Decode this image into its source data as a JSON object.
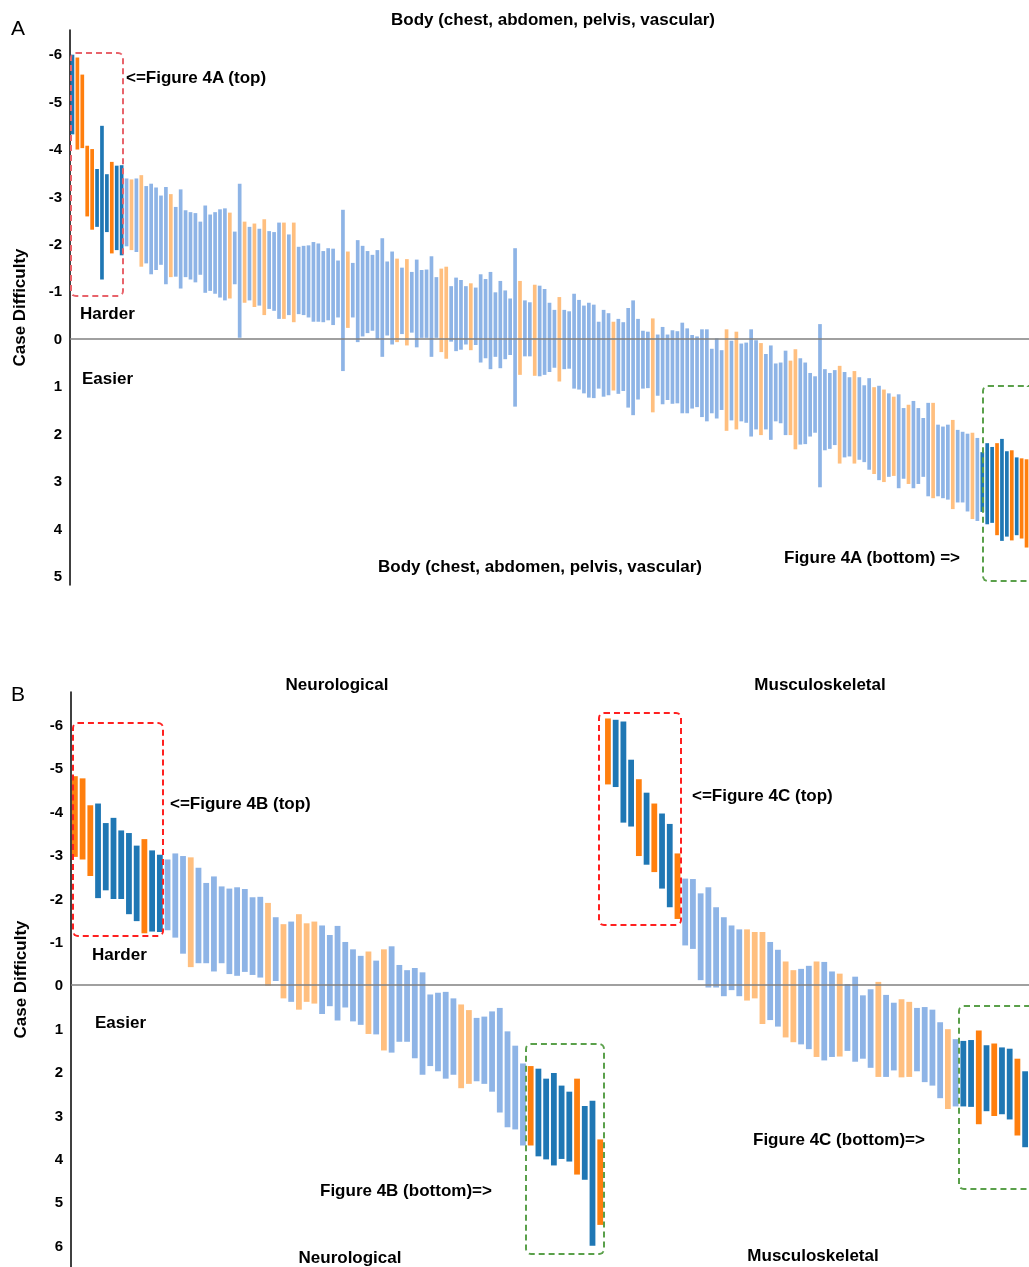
{
  "chart_data": [
    {
      "type": "bar",
      "title": "A",
      "ylabel": "Case Difficulty",
      "annotations": [
        "Body (chest, abdomen, pelvis, vascular)",
        "<=Figure 4A (top)",
        "Harder",
        "Easier",
        "Figure 4A (bottom) =>",
        "Body (chest, abdomen, pelvis, vascular)"
      ],
      "categories": [
        null,
        null,
        null,
        null,
        null,
        null,
        null,
        null,
        null,
        null,
        null,
        null,
        null,
        null,
        null,
        null,
        null,
        null,
        null,
        null,
        null,
        null,
        null,
        null,
        null,
        null,
        null,
        null,
        null,
        null,
        null,
        null,
        null,
        null,
        null,
        null,
        null,
        null,
        null,
        null,
        null,
        null,
        null,
        null,
        null,
        null,
        null,
        null,
        null,
        null,
        null,
        null,
        null,
        null,
        null,
        null,
        null,
        null,
        null,
        null,
        null,
        null,
        null,
        null,
        null,
        null,
        null,
        null,
        null,
        null,
        null,
        null,
        null,
        null,
        null,
        null,
        null,
        null,
        null,
        null,
        null,
        null,
        null,
        null,
        null,
        null,
        null,
        null,
        null,
        null,
        null,
        null,
        null,
        null,
        null,
        null,
        null,
        null,
        null,
        null,
        null,
        null,
        null,
        null,
        null,
        null,
        null,
        null,
        null,
        null,
        null,
        null,
        null,
        null,
        null,
        null,
        null,
        null,
        null,
        null,
        null,
        null,
        null,
        null,
        null,
        null,
        null,
        null,
        null,
        null,
        null,
        null,
        null,
        null,
        null,
        null,
        null,
        null,
        null,
        null,
        null,
        null,
        null,
        null,
        null,
        null,
        null,
        null,
        null,
        null,
        null,
        null,
        null,
        null,
        null,
        null,
        null,
        null,
        null,
        null,
        null,
        null,
        null,
        null,
        null,
        null,
        null,
        null,
        null,
        null,
        null,
        null,
        null,
        null,
        null,
        null,
        null,
        null,
        null,
        null,
        null,
        null,
        null,
        null,
        null,
        null,
        null,
        null,
        null,
        null,
        null,
        null,
        null,
        null,
        null
      ],
      "base": [
        -5.98,
        -5.92,
        -5.56,
        -4.06,
        -3.99,
        -3.57,
        -4.48,
        -3.46,
        -3.72,
        -3.64,
        -3.65,
        -3.37,
        -3.35,
        -3.37,
        -3.44,
        -3.21,
        -3.26,
        -3.18,
        -3.01,
        -3.19,
        -3.04,
        -2.77,
        -3.14,
        -2.7,
        -2.66,
        -2.64,
        -2.46,
        -2.8,
        -2.61,
        -2.66,
        -2.72,
        -2.74,
        -2.65,
        -2.25,
        -3.26,
        -2.46,
        -2.35,
        -2.42,
        -2.31,
        -2.51,
        -2.26,
        -2.24,
        -2.44,
        -2.44,
        -2.19,
        -2.44,
        -1.93,
        -1.95,
        -1.96,
        -2.03,
        -2.0,
        -1.84,
        -1.9,
        -1.89,
        -1.64,
        -2.71,
        -1.83,
        -1.59,
        -2.07,
        -1.95,
        -1.84,
        -1.76,
        -1.86,
        -2.11,
        -1.62,
        -1.83,
        -1.68,
        -1.49,
        -1.67,
        -1.4,
        -1.66,
        -1.44,
        -1.45,
        -1.73,
        -1.29,
        -1.47,
        -1.51,
        -1.1,
        -1.28,
        -1.23,
        -1.1,
        -1.16,
        -1.07,
        -1.35,
        -1.25,
        -1.4,
        -0.97,
        -1.21,
        -1.01,
        -0.84,
        -1.9,
        -1.21,
        -0.8,
        -0.76,
        -1.13,
        -1.11,
        -1.04,
        -0.75,
        -0.6,
        -0.87,
        -0.6,
        -0.57,
        -0.94,
        -0.81,
        -0.69,
        -0.75,
        -0.71,
        -0.35,
        -0.6,
        -0.53,
        -0.35,
        -0.41,
        -0.34,
        -0.64,
        -0.8,
        -0.41,
        -0.16,
        -0.14,
        -0.42,
        -0.08,
        -0.24,
        -0.08,
        -0.17,
        -0.15,
        -0.33,
        -0.21,
        -0.07,
        -0.04,
        -0.19,
        -0.19,
        0.22,
        0.0,
        0.25,
        -0.19,
        0.05,
        -0.14,
        0.11,
        0.09,
        -0.19,
        0.04,
        0.1,
        0.33,
        0.15,
        0.53,
        0.51,
        0.26,
        0.47,
        0.23,
        0.42,
        0.51,
        0.73,
        0.8,
        -0.3,
        0.65,
        0.73,
        0.67,
        0.58,
        0.71,
        0.82,
        0.69,
        0.82,
        0.99,
        0.84,
        1.03,
        1.0,
        1.08,
        1.16,
        1.23,
        1.18,
        1.47,
        1.4,
        1.32,
        1.47,
        1.68,
        1.36,
        1.36,
        1.82,
        1.86,
        1.82,
        1.72,
        1.93,
        1.97,
        2.01,
        1.99,
        2.1,
        2.4,
        2.21,
        2.29,
        2.21,
        2.12,
        2.38,
        2.36,
        2.51,
        2.53,
        2.55
      ],
      "values": [
        1.68,
        1.94,
        1.55,
        1.49,
        1.7,
        1.22,
        3.24,
        1.22,
        1.93,
        1.78,
        1.9,
        1.43,
        1.49,
        1.55,
        1.93,
        1.63,
        1.91,
        1.74,
        1.46,
        2.05,
        1.75,
        1.47,
        2.09,
        1.41,
        1.42,
        1.46,
        1.12,
        1.84,
        1.61,
        1.72,
        1.86,
        1.94,
        1.81,
        1.11,
        3.25,
        1.71,
        1.55,
        1.76,
        1.62,
        2.02,
        1.64,
        1.66,
        2.03,
        2.03,
        1.7,
        2.1,
        1.42,
        1.46,
        1.52,
        1.68,
        1.65,
        1.5,
        1.52,
        1.61,
        1.2,
        3.4,
        1.61,
        1.15,
        2.15,
        1.91,
        1.73,
        1.6,
        1.88,
        2.5,
        1.56,
        1.96,
        1.76,
        1.4,
        1.82,
        1.28,
        1.85,
        1.43,
        1.44,
        2.12,
        1.28,
        1.76,
        1.94,
        1.17,
        1.55,
        1.47,
        1.23,
        1.41,
        1.21,
        1.86,
        1.67,
        2.05,
        1.36,
        1.84,
        1.45,
        1.19,
        3.34,
        1.98,
        1.18,
        1.14,
        1.92,
        1.91,
        1.81,
        1.46,
        1.22,
        1.78,
        1.25,
        1.21,
        2.0,
        1.89,
        1.85,
        2.0,
        1.97,
        1.41,
        1.83,
        1.73,
        1.45,
        1.58,
        1.45,
        2.1,
        2.42,
        1.7,
        1.22,
        1.19,
        1.98,
        1.29,
        1.63,
        1.38,
        1.55,
        1.52,
        1.91,
        1.79,
        1.55,
        1.49,
        1.85,
        1.94,
        1.36,
        1.69,
        1.26,
        2.14,
        1.68,
        2.06,
        1.64,
        1.69,
        2.26,
        1.88,
        1.94,
        1.59,
        1.99,
        1.22,
        1.28,
        1.78,
        1.57,
        2.11,
        1.82,
        1.72,
        1.34,
        1.19,
        3.44,
        1.71,
        1.6,
        1.58,
        2.06,
        1.8,
        1.67,
        1.95,
        1.74,
        1.62,
        1.93,
        1.83,
        1.99,
        1.95,
        1.76,
        1.67,
        1.98,
        1.49,
        1.67,
        1.84,
        1.6,
        1.24,
        1.97,
        2.01,
        1.51,
        1.51,
        1.58,
        1.88,
        1.53,
        1.49,
        1.64,
        1.82,
        1.75,
        1.26,
        1.71,
        1.6,
        1.94,
        2.15,
        1.8,
        1.9,
        1.64,
        1.69,
        1.86
      ],
      "colors": [
        "#1f77b4",
        "#ff7f0e",
        "#ff7f0e",
        "#ff7f0e",
        "#ff7f0e",
        "#1f77b4",
        "#1f77b4",
        "#1f77b4",
        "#ff7f0e",
        "#1f77b4",
        "#1f77b4",
        "#8eb4e6",
        "#ffbf7f",
        "#8eb4e6",
        "#ffbf7f",
        "#8eb4e6",
        "#8eb4e6",
        "#8eb4e6",
        "#8eb4e6",
        "#8eb4e6",
        "#ffbf7f",
        "#8eb4e6",
        "#8eb4e6",
        "#8eb4e6",
        "#8eb4e6",
        "#8eb4e6",
        "#8eb4e6",
        "#8eb4e6",
        "#8eb4e6",
        "#8eb4e6",
        "#8eb4e6",
        "#8eb4e6",
        "#ffbf7f",
        "#8eb4e6",
        "#8eb4e6",
        "#ffbf7f",
        "#8eb4e6",
        "#ffbf7f",
        "#8eb4e6",
        "#ffbf7f",
        "#8eb4e6",
        "#8eb4e6",
        "#8eb4e6",
        "#ffbf7f",
        "#8eb4e6",
        "#ffbf7f",
        "#8eb4e6",
        "#8eb4e6",
        "#8eb4e6",
        "#8eb4e6",
        "#8eb4e6",
        "#8eb4e6",
        "#8eb4e6",
        "#8eb4e6",
        "#8eb4e6",
        "#8eb4e6",
        "#ffbf7f",
        "#8eb4e6",
        "#8eb4e6",
        "#8eb4e6",
        "#8eb4e6",
        "#8eb4e6",
        "#8eb4e6",
        "#8eb4e6",
        "#8eb4e6",
        "#8eb4e6",
        "#ffbf7f",
        "#8eb4e6",
        "#ffbf7f",
        "#8eb4e6",
        "#8eb4e6",
        "#8eb4e6",
        "#8eb4e6",
        "#8eb4e6",
        "#8eb4e6",
        "#ffbf7f",
        "#ffbf7f",
        "#8eb4e6",
        "#8eb4e6",
        "#8eb4e6",
        "#8eb4e6",
        "#ffbf7f",
        "#8eb4e6",
        "#8eb4e6",
        "#8eb4e6",
        "#8eb4e6",
        "#8eb4e6",
        "#8eb4e6",
        "#8eb4e6",
        "#8eb4e6",
        "#8eb4e6",
        "#ffbf7f",
        "#8eb4e6",
        "#8eb4e6",
        "#ffbf7f",
        "#8eb4e6",
        "#8eb4e6",
        "#8eb4e6",
        "#8eb4e6",
        "#ffbf7f",
        "#8eb4e6",
        "#8eb4e6",
        "#8eb4e6",
        "#8eb4e6",
        "#8eb4e6",
        "#8eb4e6",
        "#8eb4e6",
        "#8eb4e6",
        "#8eb4e6",
        "#8eb4e6",
        "#ffbf7f",
        "#8eb4e6",
        "#8eb4e6",
        "#8eb4e6",
        "#8eb4e6",
        "#8eb4e6",
        "#8eb4e6",
        "#8eb4e6",
        "#ffbf7f",
        "#8eb4e6",
        "#8eb4e6",
        "#8eb4e6",
        "#8eb4e6",
        "#8eb4e6",
        "#8eb4e6",
        "#8eb4e6",
        "#8eb4e6",
        "#8eb4e6",
        "#8eb4e6",
        "#8eb4e6",
        "#8eb4e6",
        "#8eb4e6",
        "#8eb4e6",
        "#ffbf7f",
        "#8eb4e6",
        "#ffbf7f",
        "#8eb4e6",
        "#8eb4e6",
        "#8eb4e6",
        "#8eb4e6",
        "#ffbf7f",
        "#8eb4e6",
        "#8eb4e6",
        "#8eb4e6",
        "#8eb4e6",
        "#8eb4e6",
        "#ffbf7f",
        "#ffbf7f",
        "#8eb4e6",
        "#8eb4e6",
        "#8eb4e6",
        "#8eb4e6",
        "#8eb4e6",
        "#8eb4e6",
        "#8eb4e6",
        "#8eb4e6",
        "#ffbf7f",
        "#8eb4e6",
        "#8eb4e6",
        "#ffbf7f",
        "#8eb4e6",
        "#8eb4e6",
        "#8eb4e6",
        "#ffbf7f",
        "#8eb4e6",
        "#ffbf7f",
        "#8eb4e6",
        "#ffbf7f",
        "#8eb4e6",
        "#8eb4e6",
        "#ffbf7f",
        "#8eb4e6",
        "#8eb4e6",
        "#8eb4e6",
        "#8eb4e6",
        "#ffbf7f",
        "#8eb4e6",
        "#8eb4e6",
        "#8eb4e6",
        "#ffbf7f",
        "#8eb4e6",
        "#8eb4e6",
        "#8eb4e6",
        "#ffbf7f",
        "#8eb4e6",
        "#1f77b4",
        "#1f77b4",
        "#1f77b4",
        "#ff7f0e",
        "#1f77b4",
        "#1f77b4",
        "#ff7f0e",
        "#1f77b4",
        "#ff7f0e",
        "#ff7f0e"
      ],
      "ylim": [
        5.2,
        -6.5
      ],
      "yticks": [
        -6,
        -5,
        -4,
        -3,
        -2,
        -1,
        0,
        1,
        2,
        3,
        4,
        5
      ],
      "ref_lines": [
        {
          "axis": "y",
          "value": 0,
          "color": "#808080"
        }
      ],
      "tick_labels": "y",
      "grid": false
    },
    {
      "type": "bar",
      "title": "B",
      "ylabel": "Case Difficulty",
      "annotations": [
        "Neurological",
        "Musculoskeletal",
        "<=Figure 4B (top)",
        "Harder",
        "Easier",
        "Figure 4B (bottom)=>",
        "<=Figure 4C (top)",
        "Figure 4C (bottom)=>",
        "Neurological",
        "Musculoskeletal"
      ],
      "categories": [
        null,
        null,
        null,
        null,
        null,
        null,
        null,
        null,
        null,
        null,
        null,
        null,
        null,
        null,
        null,
        null,
        null,
        null,
        null,
        null,
        null,
        null,
        null,
        null,
        null,
        null,
        null,
        null,
        null,
        null,
        null,
        null,
        null,
        null,
        null,
        null,
        null,
        null,
        null,
        null,
        null,
        null,
        null,
        null,
        null,
        null,
        null,
        null,
        null,
        null,
        null,
        null,
        null,
        null,
        null,
        null,
        null,
        null,
        null,
        null,
        null,
        null,
        null,
        null,
        null,
        null,
        null,
        null,
        null,
        null,
        null,
        null,
        null,
        null,
        null,
        null,
        null,
        null,
        null,
        null,
        null,
        null,
        null,
        null,
        null,
        null,
        null,
        null,
        null,
        null,
        null,
        null,
        null,
        null,
        null,
        null,
        null,
        null,
        null,
        null,
        null,
        null,
        null,
        null,
        null,
        null,
        null,
        null,
        null,
        null,
        null,
        null,
        null,
        null,
        null,
        null,
        null,
        null,
        null,
        null,
        null,
        null,
        null,
        null
      ],
      "base": [
        -4.81,
        -4.76,
        -4.14,
        -4.18,
        -3.73,
        -3.85,
        -3.56,
        -3.5,
        -3.21,
        -3.36,
        -3.1,
        -3.0,
        -2.89,
        -3.03,
        -2.97,
        -2.94,
        -2.7,
        -2.35,
        -2.5,
        -2.27,
        -2.22,
        -2.25,
        -2.21,
        -2.02,
        -2.03,
        -1.89,
        -1.56,
        -1.4,
        -1.46,
        -1.63,
        -1.42,
        -1.46,
        -1.37,
        -1.15,
        -1.36,
        -0.99,
        -0.82,
        -0.67,
        -0.77,
        -0.56,
        -0.82,
        -0.89,
        -0.46,
        -0.34,
        -0.39,
        -0.29,
        0.22,
        0.18,
        0.16,
        0.31,
        0.45,
        0.58,
        0.76,
        0.73,
        0.61,
        0.53,
        1.07,
        1.4,
        1.81,
        1.87,
        1.93,
        2.16,
        2.03,
        2.32,
        2.46,
        2.16,
        2.79,
        2.67,
        3.56,
        -6.14,
        -6.11,
        -6.07,
        -5.19,
        -4.74,
        -4.43,
        -4.18,
        -3.95,
        -3.71,
        -3.03,
        -2.45,
        -2.44,
        -2.11,
        -2.25,
        -1.79,
        -1.56,
        -1.37,
        -1.28,
        -1.28,
        -1.22,
        -1.22,
        -0.99,
        -0.81,
        -0.54,
        -0.34,
        -0.37,
        -0.44,
        -0.54,
        -0.53,
        -0.31,
        -0.26,
        -0.02,
        -0.19,
        0.24,
        0.1,
        -0.07,
        0.23,
        0.41,
        0.33,
        0.39,
        0.53,
        0.51,
        0.57,
        0.86,
        1.02,
        1.25,
        1.29,
        1.27,
        1.05,
        1.39,
        1.35,
        1.44,
        1.47,
        1.7,
        1.99
      ],
      "values": [
        1.86,
        1.87,
        1.63,
        2.18,
        1.55,
        1.87,
        1.58,
        1.87,
        1.74,
        2.17,
        1.87,
        1.78,
        1.63,
        1.94,
        2.25,
        2.53,
        2.2,
        1.85,
        2.19,
        1.77,
        1.97,
        2.04,
        1.91,
        1.79,
        1.86,
        1.91,
        1.47,
        1.71,
        1.85,
        2.2,
        1.81,
        1.89,
        2.04,
        1.64,
        2.18,
        1.51,
        1.66,
        1.59,
        1.9,
        1.7,
        2.33,
        2.45,
        1.77,
        1.65,
        2.08,
        2.36,
        1.65,
        1.81,
        2.0,
        1.76,
        1.93,
        1.7,
        1.46,
        1.55,
        1.85,
        2.41,
        2.21,
        1.93,
        1.89,
        1.83,
        2.02,
        1.86,
        2.13,
        1.69,
        1.61,
        2.21,
        1.7,
        3.34,
        1.97,
        1.52,
        1.55,
        2.33,
        1.54,
        1.77,
        1.66,
        1.58,
        1.73,
        1.92,
        1.51,
        1.54,
        1.61,
        2.0,
        2.31,
        1.85,
        1.82,
        1.49,
        1.54,
        1.64,
        1.53,
        2.12,
        1.8,
        1.77,
        1.75,
        1.66,
        1.74,
        1.92,
        2.2,
        2.27,
        1.97,
        1.91,
        1.54,
        1.96,
        1.46,
        1.81,
        2.19,
        1.89,
        1.56,
        1.8,
        1.73,
        1.46,
        1.73,
        1.75,
        1.75,
        1.84,
        1.55,
        1.51,
        1.54,
        2.16,
        1.52,
        1.67,
        1.54,
        1.63,
        1.77,
        1.75
      ],
      "colors": [
        "#ff7f0e",
        "#ff7f0e",
        "#ff7f0e",
        "#1f77b4",
        "#1f77b4",
        "#1f77b4",
        "#1f77b4",
        "#1f77b4",
        "#1f77b4",
        "#ff7f0e",
        "#1f77b4",
        "#1f77b4",
        "#8eb4e6",
        "#8eb4e6",
        "#8eb4e6",
        "#ffbf7f",
        "#8eb4e6",
        "#8eb4e6",
        "#8eb4e6",
        "#8eb4e6",
        "#8eb4e6",
        "#8eb4e6",
        "#8eb4e6",
        "#8eb4e6",
        "#8eb4e6",
        "#ffbf7f",
        "#8eb4e6",
        "#ffbf7f",
        "#8eb4e6",
        "#ffbf7f",
        "#ffbf7f",
        "#ffbf7f",
        "#8eb4e6",
        "#8eb4e6",
        "#8eb4e6",
        "#8eb4e6",
        "#8eb4e6",
        "#8eb4e6",
        "#ffbf7f",
        "#8eb4e6",
        "#ffbf7f",
        "#8eb4e6",
        "#8eb4e6",
        "#8eb4e6",
        "#8eb4e6",
        "#8eb4e6",
        "#8eb4e6",
        "#8eb4e6",
        "#8eb4e6",
        "#8eb4e6",
        "#ffbf7f",
        "#ffbf7f",
        "#8eb4e6",
        "#8eb4e6",
        "#8eb4e6",
        "#8eb4e6",
        "#8eb4e6",
        "#8eb4e6",
        "#8eb4e6",
        "#ff7f0e",
        "#1f77b4",
        "#1f77b4",
        "#1f77b4",
        "#1f77b4",
        "#1f77b4",
        "#ff7f0e",
        "#1f77b4",
        "#1f77b4",
        "#ff7f0e",
        "#ff7f0e",
        "#1f77b4",
        "#1f77b4",
        "#1f77b4",
        "#ff7f0e",
        "#1f77b4",
        "#ff7f0e",
        "#1f77b4",
        "#1f77b4",
        "#ff7f0e",
        "#8eb4e6",
        "#8eb4e6",
        "#8eb4e6",
        "#8eb4e6",
        "#8eb4e6",
        "#8eb4e6",
        "#8eb4e6",
        "#8eb4e6",
        "#ffbf7f",
        "#ffbf7f",
        "#ffbf7f",
        "#8eb4e6",
        "#8eb4e6",
        "#ffbf7f",
        "#ffbf7f",
        "#8eb4e6",
        "#8eb4e6",
        "#ffbf7f",
        "#8eb4e6",
        "#8eb4e6",
        "#ffbf7f",
        "#8eb4e6",
        "#8eb4e6",
        "#8eb4e6",
        "#8eb4e6",
        "#ffbf7f",
        "#8eb4e6",
        "#8eb4e6",
        "#ffbf7f",
        "#ffbf7f",
        "#8eb4e6",
        "#8eb4e6",
        "#8eb4e6",
        "#8eb4e6",
        "#ffbf7f",
        "#8eb4e6",
        "#1f77b4",
        "#1f77b4",
        "#ff7f0e",
        "#1f77b4",
        "#ff7f0e",
        "#1f77b4",
        "#1f77b4",
        "#ff7f0e",
        "#1f77b4"
      ],
      "ylim": [
        6.5,
        -6.75
      ],
      "yticks": [
        -6,
        -5,
        -4,
        -3,
        -2,
        -1,
        0,
        1,
        2,
        3,
        4,
        5,
        6
      ],
      "ref_lines": [
        {
          "axis": "y",
          "value": 0,
          "color": "#808080"
        }
      ],
      "tick_labels": "y",
      "grid": false
    }
  ]
}
